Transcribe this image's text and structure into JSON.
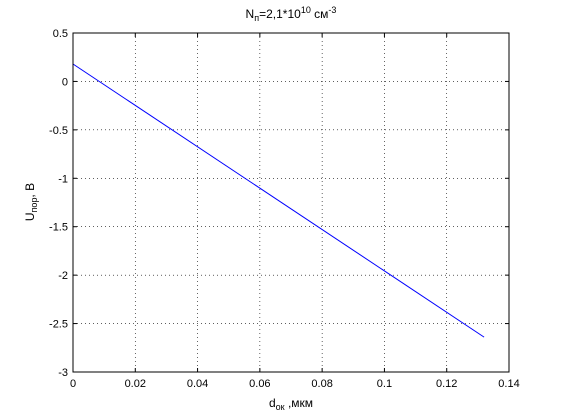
{
  "chart_data": {
    "type": "line",
    "title": {
      "main": "N",
      "sub": "п",
      "mid": "=2,1*10",
      "sup": "10",
      "unit": " см",
      "unit_sup": "-3"
    },
    "xlabel": {
      "main": "d",
      "sub": "ок",
      "rest": " ,мкм"
    },
    "ylabel": {
      "main": "U",
      "sub": "пор",
      "rest": ", В"
    },
    "xlim": [
      0,
      0.14
    ],
    "ylim": [
      -3,
      0.5
    ],
    "xticks": [
      0,
      0.02,
      0.04,
      0.06,
      0.08,
      0.1,
      0.12,
      0.14
    ],
    "xtick_labels": [
      "0",
      "0.02",
      "0.04",
      "0.06",
      "0.08",
      "0.1",
      "0.12",
      "0.14"
    ],
    "yticks": [
      0.5,
      0,
      -0.5,
      -1,
      -1.5,
      -2,
      -2.5,
      -3
    ],
    "ytick_labels": [
      "0.5",
      "0",
      "-0.5",
      "-1",
      "-1.5",
      "-2",
      "-2.5",
      "-3"
    ],
    "grid": true,
    "series": [
      {
        "color": "#0000ff",
        "x": [
          0,
          0.132
        ],
        "y": [
          0.18,
          -2.64
        ]
      }
    ]
  }
}
